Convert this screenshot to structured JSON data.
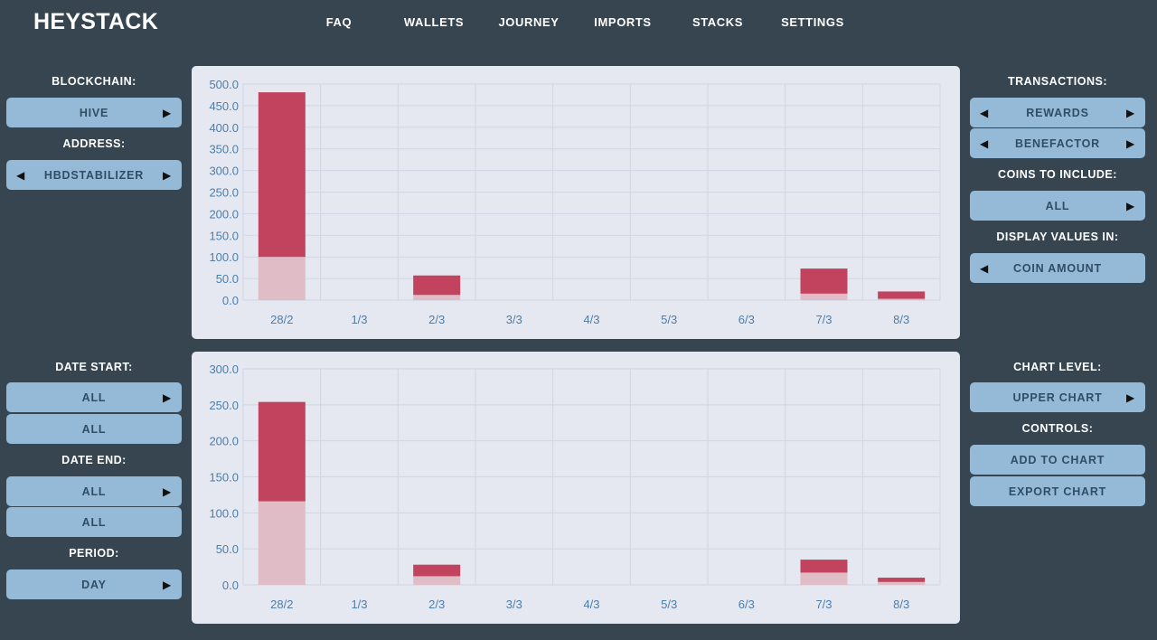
{
  "app": {
    "title": "HEYSTACK"
  },
  "nav": [
    "FAQ",
    "WALLETS",
    "JOURNEY",
    "IMPORTS",
    "STACKS",
    "SETTINGS"
  ],
  "left": {
    "blockchain_label": "BLOCKCHAIN:",
    "blockchain_value": "HIVE",
    "address_label": "ADDRESS:",
    "address_value": "HBDSTABILIZER",
    "date_start_label": "DATE START:",
    "date_start_value": "ALL",
    "date_start_secondary": "ALL",
    "date_end_label": "DATE END:",
    "date_end_value": "ALL",
    "date_end_secondary": "ALL",
    "period_label": "PERIOD:",
    "period_value": "DAY"
  },
  "right": {
    "transactions_label": "TRANSACTIONS:",
    "transactions_value_1": "REWARDS",
    "transactions_value_2": "BENEFACTOR",
    "coins_label": "COINS TO INCLUDE:",
    "coins_value": "ALL",
    "display_label": "DISPLAY VALUES IN:",
    "display_value": "COIN AMOUNT",
    "chart_level_label": "CHART LEVEL:",
    "chart_level_value": "UPPER CHART",
    "controls_label": "CONTROLS:",
    "add_button": "ADD TO CHART",
    "export_button": "EXPORT CHART"
  },
  "colors": {
    "bar_dark": "#c2435e",
    "bar_light": "#dfbcc6"
  },
  "chart_data": [
    {
      "type": "bar",
      "stacked": true,
      "categories": [
        "28/2",
        "1/3",
        "2/3",
        "3/3",
        "4/3",
        "5/3",
        "6/3",
        "7/3",
        "8/3"
      ],
      "ylim": [
        0,
        500
      ],
      "yticks": [
        "0.0",
        "50.0",
        "100.0",
        "150.0",
        "200.0",
        "250.0",
        "300.0",
        "350.0",
        "400.0",
        "450.0",
        "500.0"
      ],
      "series": [
        {
          "values": [
            100,
            0,
            12,
            0,
            0,
            0,
            0,
            15,
            3
          ]
        },
        {
          "values": [
            381,
            0,
            45,
            0,
            0,
            0,
            0,
            58,
            17
          ]
        }
      ]
    },
    {
      "type": "bar",
      "stacked": true,
      "categories": [
        "28/2",
        "1/3",
        "2/3",
        "3/3",
        "4/3",
        "5/3",
        "6/3",
        "7/3",
        "8/3"
      ],
      "ylim": [
        0,
        300
      ],
      "yticks": [
        "0.0",
        "50.0",
        "100.0",
        "150.0",
        "200.0",
        "250.0",
        "300.0"
      ],
      "series": [
        {
          "values": [
            116,
            0,
            12,
            0,
            0,
            0,
            0,
            17,
            4
          ]
        },
        {
          "values": [
            138,
            0,
            16,
            0,
            0,
            0,
            0,
            18,
            6
          ]
        }
      ]
    }
  ]
}
